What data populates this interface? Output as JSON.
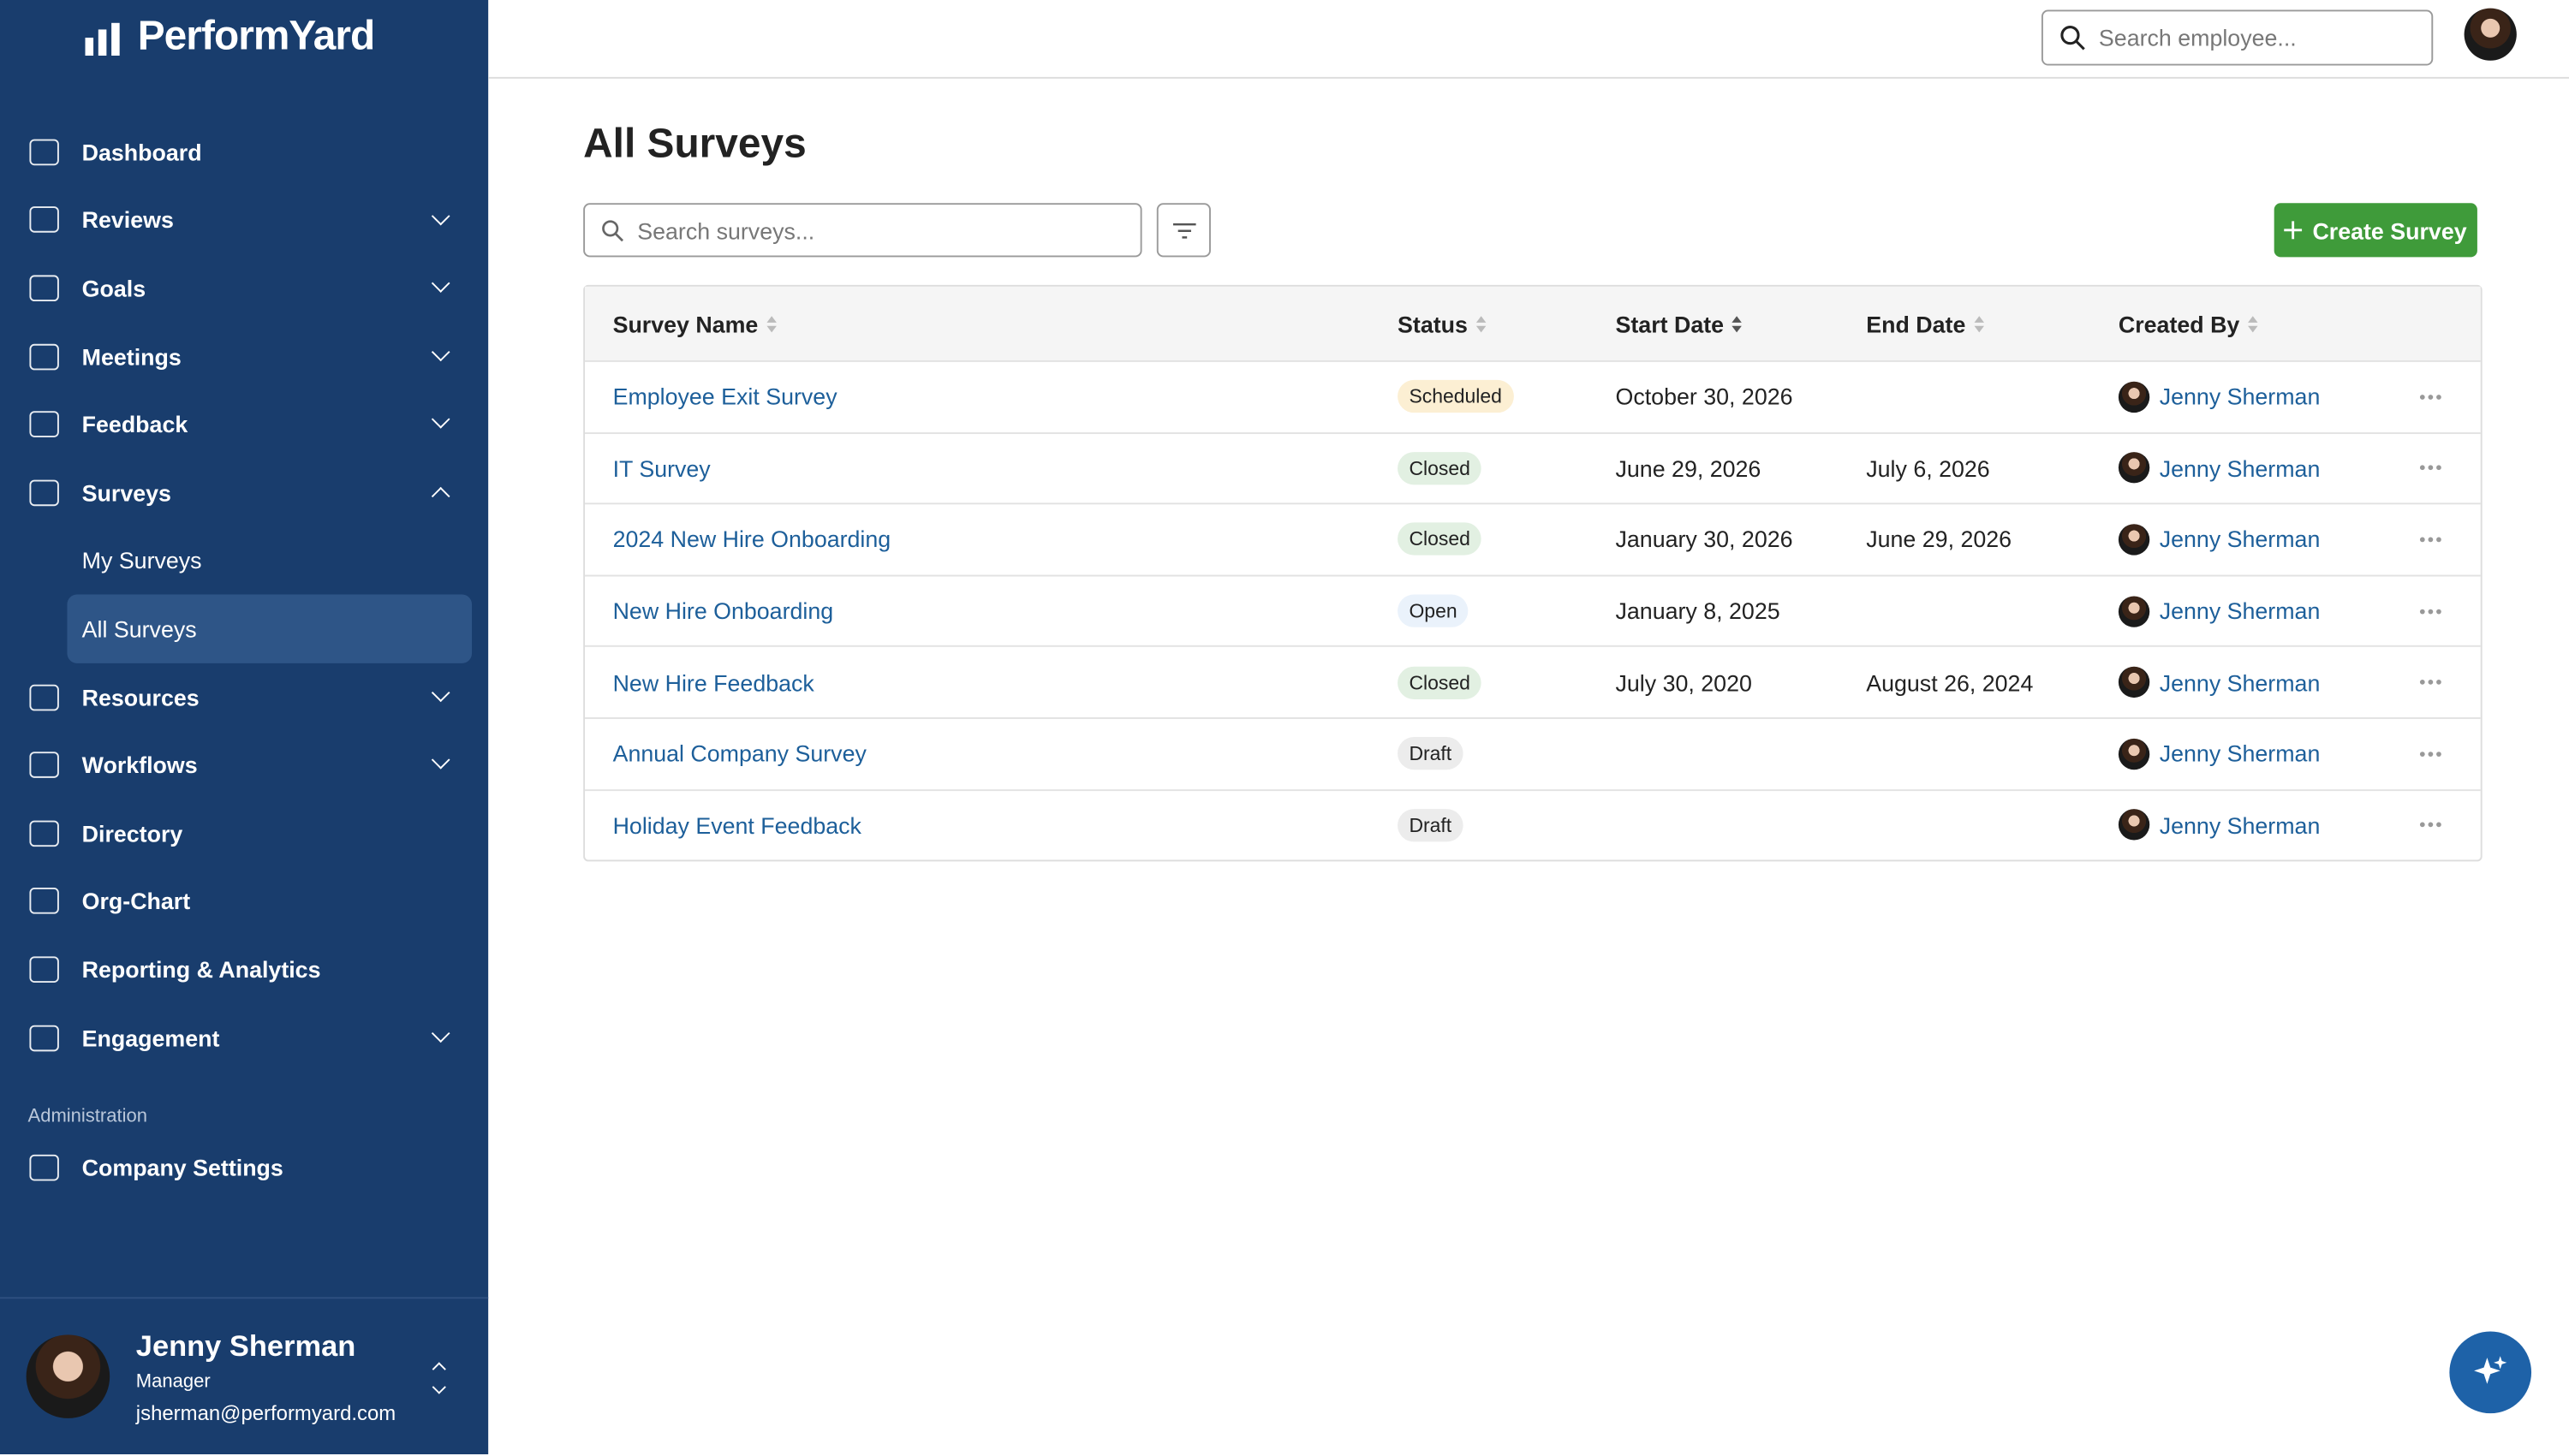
{
  "sidebar": {
    "brand": "PerformYard",
    "nav": [
      {
        "label": "Dashboard"
      },
      {
        "label": "Reviews",
        "chevron": "down"
      },
      {
        "label": "Goals",
        "chevron": "down"
      },
      {
        "label": "Meetings",
        "chevron": "down"
      },
      {
        "label": "Feedback",
        "chevron": "down"
      },
      {
        "label": "Surveys",
        "chevron": "up",
        "children": [
          {
            "label": "My Surveys"
          },
          {
            "label": "All Surveys",
            "active": true
          }
        ]
      },
      {
        "label": "Resources",
        "chevron": "down"
      },
      {
        "label": "Workflows",
        "chevron": "down"
      },
      {
        "label": "Directory"
      },
      {
        "label": "Org-Chart"
      },
      {
        "label": "Reporting & Analytics"
      },
      {
        "label": "Engagement",
        "chevron": "down"
      }
    ],
    "admin_heading": "Administration",
    "admin": [
      {
        "label": "Company Settings"
      }
    ],
    "user": {
      "name": "Jenny Sherman",
      "role": "Manager",
      "email": "jsherman@performyard.com"
    }
  },
  "topbar": {
    "search_placeholder": "Search employee..."
  },
  "page": {
    "title": "All Surveys",
    "search_placeholder": "Search surveys...",
    "create_button": "Create Survey"
  },
  "table": {
    "columns": [
      "Survey Name",
      "Status",
      "Start Date",
      "End Date",
      "Created By"
    ],
    "rows": [
      {
        "name": "Employee Exit Survey",
        "status": "Scheduled",
        "start": "October 30, 2026",
        "created_by": "Jenny Sherman"
      },
      {
        "name": "IT Survey",
        "status": "Closed",
        "start": "June 29, 2026",
        "end": "July 6, 2026",
        "created_by": "Jenny Sherman"
      },
      {
        "name": "2024 New Hire Onboarding",
        "status": "Closed",
        "start": "January 30, 2026",
        "end": "June 29, 2026",
        "created_by": "Jenny Sherman"
      },
      {
        "name": "New Hire Onboarding",
        "status": "Open",
        "start": "January 8, 2025",
        "created_by": "Jenny Sherman"
      },
      {
        "name": "New Hire Feedback",
        "status": "Closed",
        "start": "July 30, 2020",
        "end": "August 26, 2024",
        "created_by": "Jenny Sherman"
      },
      {
        "name": "Annual Company Survey",
        "status": "Draft",
        "created_by": "Jenny Sherman"
      },
      {
        "name": "Holiday Event Feedback",
        "status": "Draft",
        "created_by": "Jenny Sherman"
      }
    ]
  }
}
